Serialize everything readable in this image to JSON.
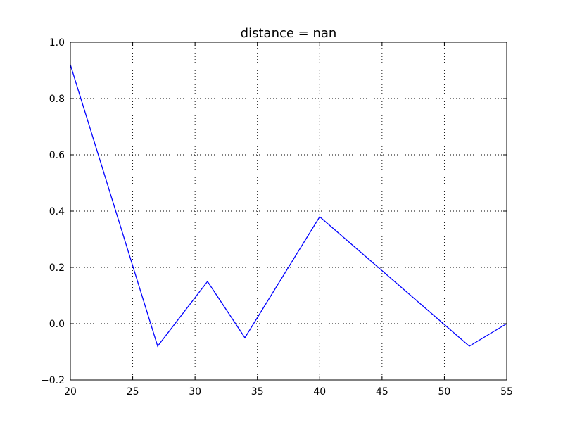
{
  "chart_data": {
    "type": "line",
    "title": "distance = nan",
    "xlabel": "",
    "ylabel": "",
    "xlim": [
      20,
      55
    ],
    "ylim": [
      -0.2,
      1.0
    ],
    "x_ticks": [
      "20",
      "25",
      "30",
      "35",
      "40",
      "45",
      "50",
      "55"
    ],
    "y_ticks": [
      "−0.2",
      "0.0",
      "0.2",
      "0.4",
      "0.6",
      "0.8",
      "1.0"
    ],
    "grid": true,
    "series": [
      {
        "color": "#0000ff",
        "x": [
          20,
          27,
          31,
          34,
          40,
          52,
          55
        ],
        "y": [
          0.92,
          -0.08,
          0.15,
          -0.05,
          0.38,
          -0.08,
          0.0
        ]
      }
    ]
  }
}
